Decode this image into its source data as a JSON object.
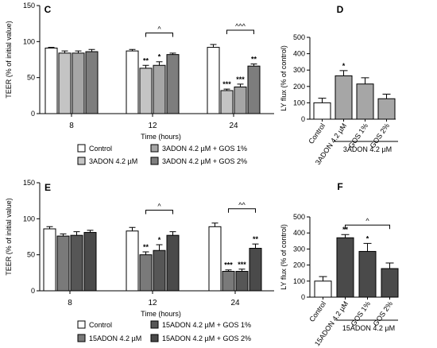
{
  "chart_data": [
    {
      "panel": "C",
      "type": "bar",
      "ylabel": "TEER (% of initial value)",
      "xlabel": "Time (hours)",
      "ylim": [
        0,
        150
      ],
      "yticks": [
        0,
        50,
        100,
        150
      ],
      "categories": [
        "8",
        "12",
        "24"
      ],
      "series": [
        {
          "name": "Control",
          "color": "#ffffff",
          "values": [
            91,
            87,
            92
          ],
          "errors": [
            1,
            2,
            4
          ]
        },
        {
          "name": "3ADON 4.2 µM",
          "color": "#c4c4c4",
          "values": [
            84,
            63,
            32
          ],
          "errors": [
            3,
            4,
            2
          ]
        },
        {
          "name": "3ADON 4.2 µM + GOS 1%",
          "color": "#a6a6a6",
          "values": [
            84,
            67,
            37
          ],
          "errors": [
            3,
            5,
            4
          ]
        },
        {
          "name": "3ADON 4.2 µM + GOS 2%",
          "color": "#7d7d7d",
          "values": [
            86,
            82,
            66
          ],
          "errors": [
            3,
            2,
            3
          ]
        }
      ],
      "stars": [
        [
          "",
          "",
          "",
          ""
        ],
        [
          "",
          "**",
          "*",
          ""
        ],
        [
          "",
          "***",
          "***",
          "**"
        ]
      ],
      "brackets": [
        {
          "group": 1,
          "from": 1,
          "to": 3,
          "label": "^"
        },
        {
          "group": 2,
          "from": 1,
          "to": 3,
          "label": "^^^"
        }
      ]
    },
    {
      "panel": "D",
      "type": "bar",
      "ylabel": "LY flux (% of control)",
      "ylim": [
        0,
        500
      ],
      "yticks": [
        0,
        100,
        200,
        300,
        400,
        500
      ],
      "categories": [
        "Control",
        "3ADON 4.2 µM",
        "GOS 1%",
        "GOS 2%"
      ],
      "colors": [
        "#ffffff",
        "#a6a6a6",
        "#a6a6a6",
        "#a6a6a6"
      ],
      "values": [
        100,
        265,
        215,
        125
      ],
      "errors": [
        28,
        32,
        38,
        28
      ],
      "stars": [
        "",
        "*",
        "",
        ""
      ],
      "group_label": "3ADON 4.2 µM"
    },
    {
      "panel": "E",
      "type": "bar",
      "ylabel": "TEER (% of initial value)",
      "xlabel": "Time (hours)",
      "ylim": [
        0,
        150
      ],
      "yticks": [
        0,
        50,
        100,
        150
      ],
      "categories": [
        "8",
        "12",
        "24"
      ],
      "series": [
        {
          "name": "Control",
          "color": "#ffffff",
          "values": [
            86,
            83,
            89
          ],
          "errors": [
            3,
            5,
            5
          ]
        },
        {
          "name": "15ADON 4.2 µM",
          "color": "#7a7a7a",
          "values": [
            76,
            50,
            27
          ],
          "errors": [
            3,
            4,
            2
          ]
        },
        {
          "name": "15ADON 4.2 µM + GOS 1%",
          "color": "#565656",
          "values": [
            77,
            56,
            27
          ],
          "errors": [
            5,
            8,
            3
          ]
        },
        {
          "name": "15ADON 4.2 µM + GOS 2%",
          "color": "#4a4a4a",
          "values": [
            81,
            77,
            59
          ],
          "errors": [
            3,
            5,
            6
          ]
        }
      ],
      "stars": [
        [
          "",
          "",
          "",
          ""
        ],
        [
          "",
          "**",
          "*",
          ""
        ],
        [
          "",
          "***",
          "***",
          "**"
        ]
      ],
      "brackets": [
        {
          "group": 1,
          "from": 1,
          "to": 3,
          "label": "^"
        },
        {
          "group": 2,
          "from": 1,
          "to": 3,
          "label": "^^"
        }
      ]
    },
    {
      "panel": "F",
      "type": "bar",
      "ylabel": "LY flux (% of control)",
      "ylim": [
        0,
        500
      ],
      "yticks": [
        0,
        100,
        200,
        300,
        400,
        500
      ],
      "categories": [
        "Control",
        "15ADON 4.2 µM",
        "GOS 1%",
        "GOS 2%"
      ],
      "colors": [
        "#ffffff",
        "#4a4a4a",
        "#4a4a4a",
        "#4a4a4a"
      ],
      "values": [
        100,
        370,
        285,
        178
      ],
      "errors": [
        28,
        20,
        50,
        35
      ],
      "stars": [
        "",
        "**",
        "*",
        ""
      ],
      "brackets": [
        {
          "from": 1,
          "to": 3,
          "label": "^"
        }
      ],
      "group_label": "15ADON 4.2 µM"
    }
  ]
}
